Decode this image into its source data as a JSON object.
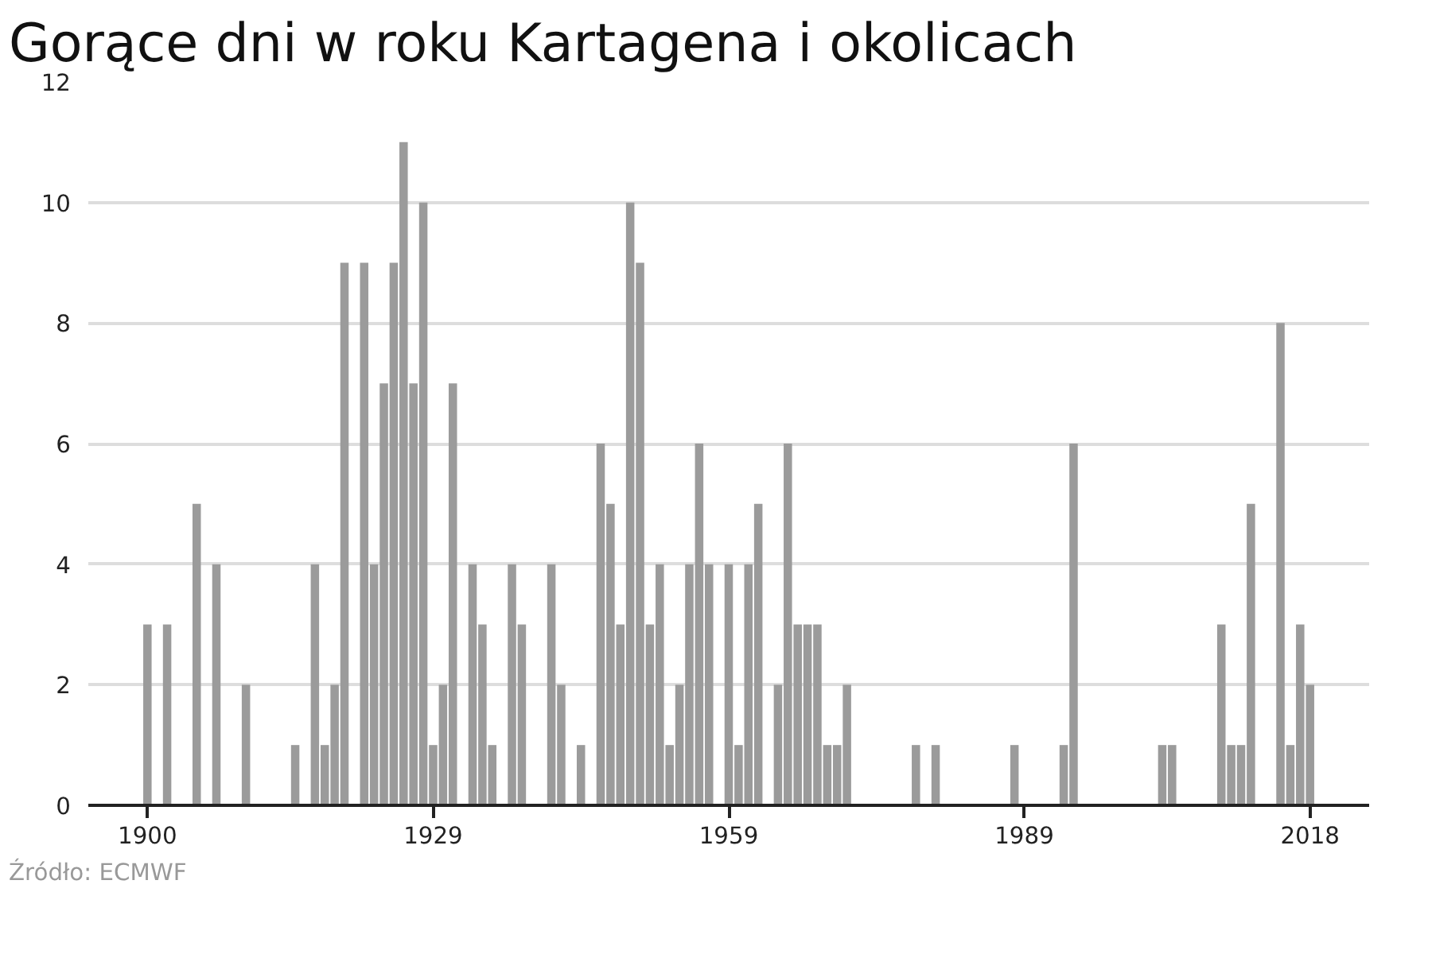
{
  "chart_data": {
    "type": "bar",
    "title": "Gorące dni w roku Kartagena i okolicach",
    "x": [
      1900,
      1902,
      1905,
      1907,
      1910,
      1915,
      1917,
      1918,
      1919,
      1920,
      1922,
      1923,
      1924,
      1925,
      1926,
      1927,
      1928,
      1929,
      1930,
      1931,
      1933,
      1934,
      1935,
      1937,
      1938,
      1941,
      1942,
      1944,
      1946,
      1947,
      1948,
      1949,
      1950,
      1951,
      1952,
      1953,
      1954,
      1955,
      1956,
      1957,
      1959,
      1960,
      1961,
      1962,
      1964,
      1965,
      1966,
      1967,
      1968,
      1969,
      1970,
      1971,
      1978,
      1980,
      1988,
      1993,
      1994,
      2003,
      2004,
      2009,
      2010,
      2011,
      2012,
      2015,
      2016,
      2017,
      2018
    ],
    "values": [
      3,
      3,
      5,
      4,
      2,
      1,
      4,
      1,
      2,
      9,
      9,
      4,
      7,
      9,
      11,
      7,
      10,
      1,
      2,
      7,
      4,
      3,
      1,
      4,
      3,
      4,
      2,
      1,
      6,
      5,
      3,
      10,
      9,
      3,
      4,
      1,
      2,
      4,
      6,
      4,
      4,
      1,
      4,
      5,
      2,
      6,
      3,
      3,
      3,
      1,
      1,
      2,
      1,
      1,
      1,
      1,
      6,
      1,
      1,
      3,
      1,
      1,
      5,
      8,
      1,
      3,
      2
    ],
    "color": "#9b9b9b",
    "xlim": [
      1894,
      2024
    ],
    "ylim": [
      0,
      12
    ],
    "xticks": [
      1900,
      1929,
      1959,
      1989,
      2018
    ],
    "yticks": [
      0,
      2,
      4,
      6,
      8,
      10,
      12
    ],
    "grid": "y",
    "annotations": [
      "Źródło: ECMWF"
    ]
  }
}
